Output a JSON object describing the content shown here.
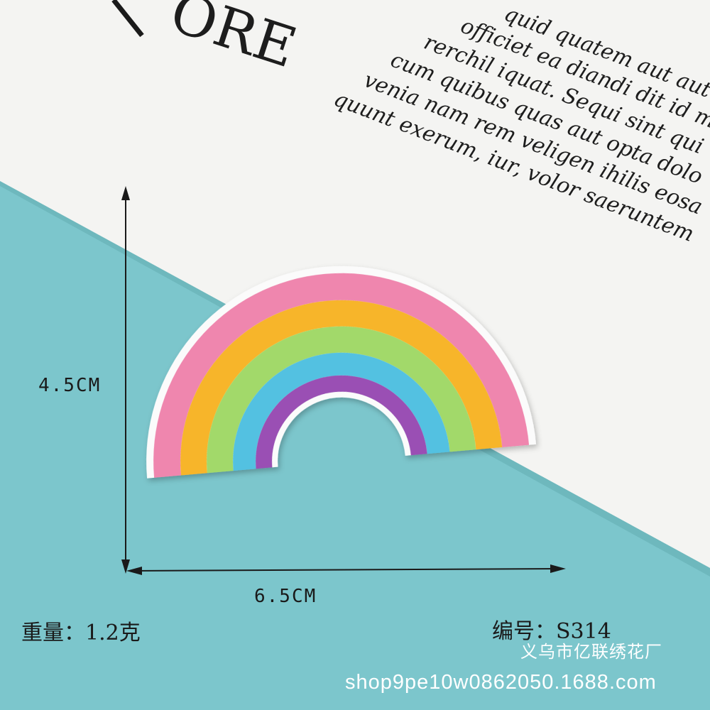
{
  "paper": {
    "heading": "ORE",
    "lines": [
      "quid quatem aut aut a",
      "officiet ea diandi dit id ma",
      "rerchil iquat. Sequi sint qui",
      "cum quibus quas aut opta dolo",
      "venia nam rem veligen ihilis eosa",
      "quunt exerum, iur, volor saeruntem"
    ]
  },
  "dimensions": {
    "height": "4.5CM",
    "width": "6.5CM"
  },
  "info": {
    "weight": "重量：1.2克",
    "code": "编号：S314"
  },
  "factory": "义乌市亿联绣花厂",
  "shop_url": "shop9pe10w0862050.1688.com",
  "colors": {
    "background": "#7cc6cc",
    "paper": "#f4f4f2",
    "rainbow": [
      "#ef86ae",
      "#f7b52a",
      "#a2d96a",
      "#52c1e1",
      "#9a4fb4"
    ]
  }
}
